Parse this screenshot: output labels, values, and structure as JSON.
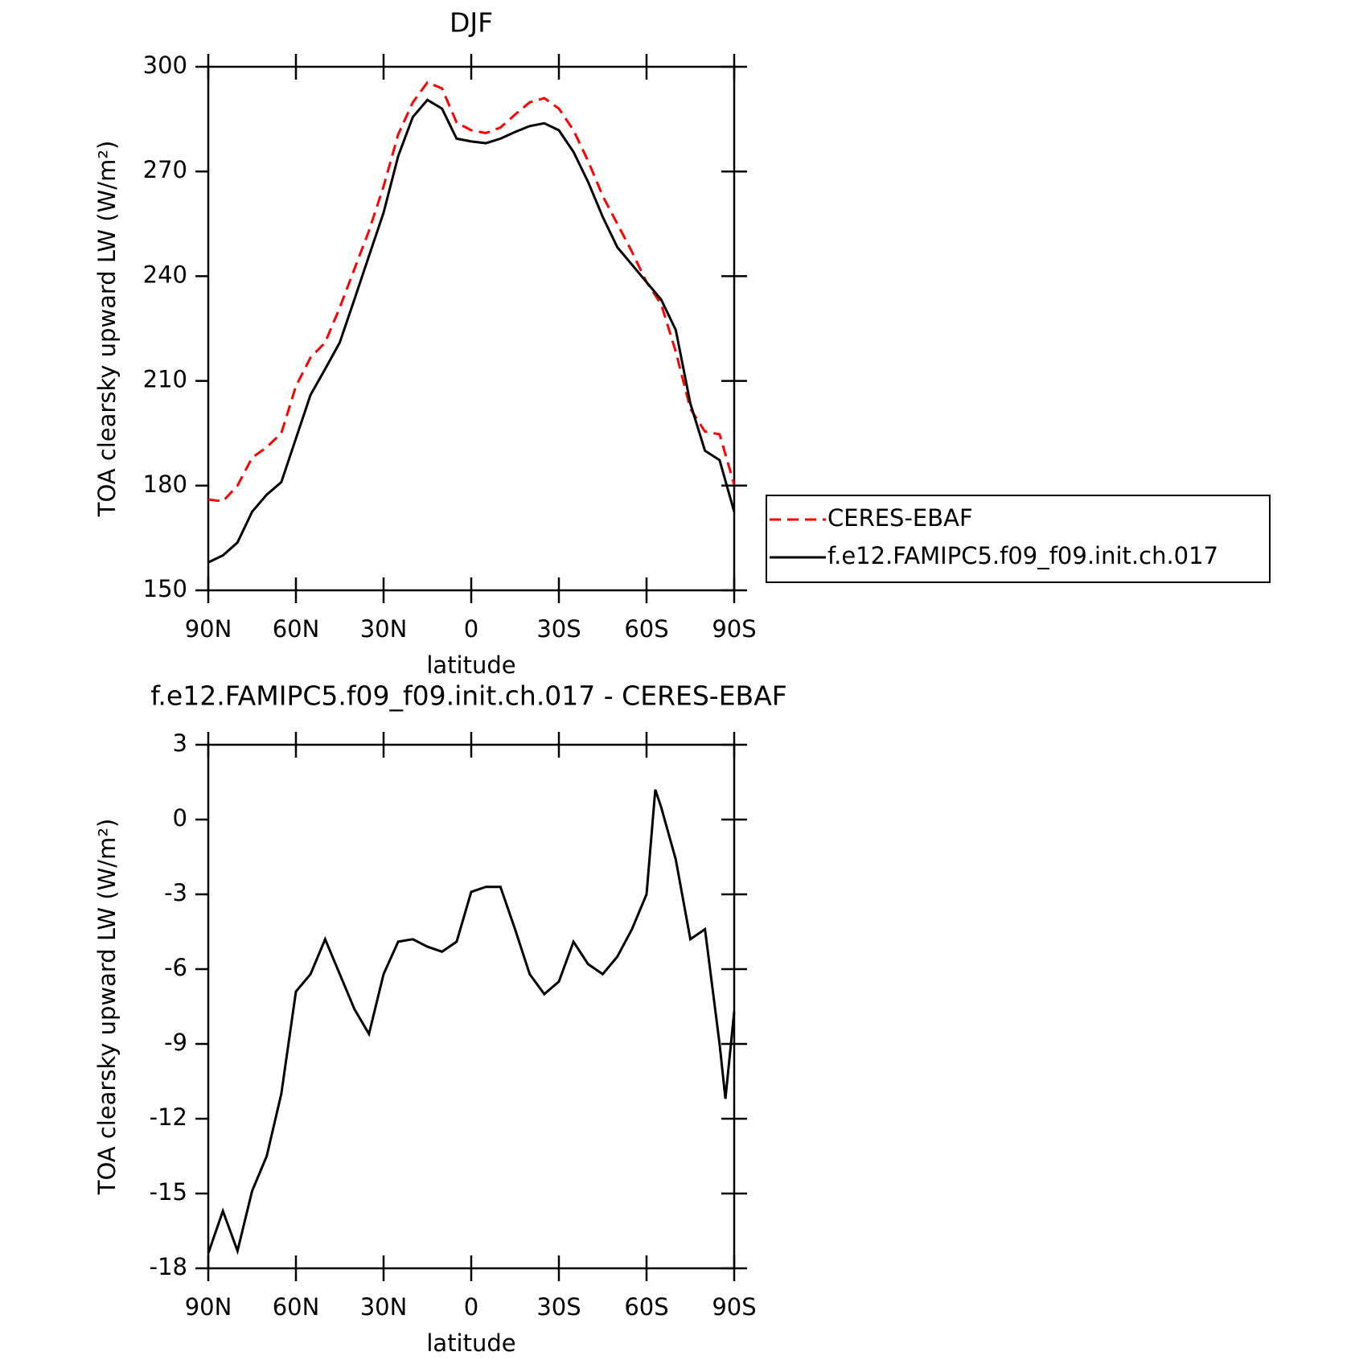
{
  "chart_data": [
    {
      "type": "line",
      "title": "DJF",
      "xlabel": "latitude",
      "ylabel": "TOA clearsky upward LW (W/m²)",
      "x": [
        90,
        85,
        80,
        75,
        70,
        65,
        60,
        55,
        50,
        45,
        40,
        35,
        30,
        25,
        20,
        15,
        10,
        5,
        0,
        -5,
        -10,
        -15,
        -20,
        -25,
        -30,
        -35,
        -40,
        -45,
        -50,
        -55,
        -60,
        -65,
        -70,
        -75,
        -80,
        -85,
        -90
      ],
      "series": [
        {
          "name": "CERES-EBAF",
          "color": "#ff0000",
          "dash": true,
          "values": [
            176,
            175.5,
            180,
            188,
            191,
            195,
            208.5,
            216.7,
            221,
            231,
            242,
            253,
            265.7,
            280.6,
            289.8,
            295.5,
            293.8,
            284,
            281.8,
            281,
            282.6,
            286.3,
            289.8,
            291,
            288,
            281.8,
            273,
            263,
            255,
            247,
            238.3,
            232,
            218.4,
            202,
            195.5,
            194.7,
            180.3
          ]
        },
        {
          "name": "f.e12.FAMIPC5.f09_f09.init.ch.017",
          "color": "#000000",
          "dash": false,
          "values": [
            158,
            160,
            163.7,
            172.5,
            177.4,
            181,
            193.5,
            206,
            213.4,
            221,
            233.3,
            245.8,
            258.2,
            274.4,
            285.6,
            290.5,
            288,
            279.4,
            278.6,
            278.1,
            279.4,
            281.3,
            283,
            283.8,
            281.8,
            275.6,
            267,
            257,
            248.3,
            243.3,
            238.3,
            233.3,
            224.6,
            203.5,
            190,
            187.3,
            172.5
          ]
        }
      ],
      "xlim": [
        90,
        -90
      ],
      "xticks": [
        {
          "value": 90,
          "label": "90N"
        },
        {
          "value": 60,
          "label": "60N"
        },
        {
          "value": 30,
          "label": "30N"
        },
        0,
        {
          "value": -30,
          "label": "30S"
        },
        {
          "value": -60,
          "label": "60S"
        },
        {
          "value": -90,
          "label": "90S"
        }
      ],
      "ylim": [
        150,
        300
      ],
      "yticks": [
        150,
        180,
        210,
        240,
        270,
        300
      ],
      "legend": "right"
    },
    {
      "type": "line",
      "title": "f.e12.FAMIPC5.f09_f09.init.ch.017 - CERES-EBAF",
      "xlabel": "latitude",
      "ylabel": "TOA clearsky upward LW (W/m²)",
      "x": [
        90,
        85,
        80,
        75,
        70,
        65,
        60,
        55,
        50,
        45,
        40,
        35,
        30,
        25,
        20,
        15,
        10,
        5,
        0,
        -5,
        -10,
        -15,
        -20,
        -25,
        -30,
        -35,
        -40,
        -45,
        -50,
        -55,
        -60,
        -63,
        -65,
        -70,
        -75,
        -80,
        -85,
        -87,
        -90
      ],
      "series": [
        {
          "name": "f.e12.FAMIPC5.f09_f09.init.ch.017",
          "color": "#000000",
          "dash": false,
          "values": [
            -17.4,
            -15.7,
            -17.3,
            -14.9,
            -13.5,
            -11,
            -6.9,
            -6.2,
            -4.8,
            -6.2,
            -7.6,
            -8.6,
            -6.2,
            -4.9,
            -4.8,
            -5.1,
            -5.3,
            -4.9,
            -2.9,
            -2.7,
            -2.7,
            -4.4,
            -6.2,
            -7,
            -6.5,
            -4.9,
            -5.8,
            -6.2,
            -5.5,
            -4.4,
            -3,
            1.2,
            0.5,
            -1.6,
            -4.8,
            -4.4,
            -9,
            -11.2,
            -7.7
          ]
        }
      ],
      "xlim": [
        90,
        -90
      ],
      "xticks": [
        {
          "value": 90,
          "label": "90N"
        },
        {
          "value": 60,
          "label": "60N"
        },
        {
          "value": 30,
          "label": "30N"
        },
        0,
        {
          "value": -30,
          "label": "30S"
        },
        {
          "value": -60,
          "label": "60S"
        },
        {
          "value": -90,
          "label": "90S"
        }
      ],
      "ylim": [
        -18,
        3
      ],
      "yticks": [
        -18,
        -15,
        -12,
        -9,
        -6,
        -3,
        0,
        3
      ]
    }
  ]
}
